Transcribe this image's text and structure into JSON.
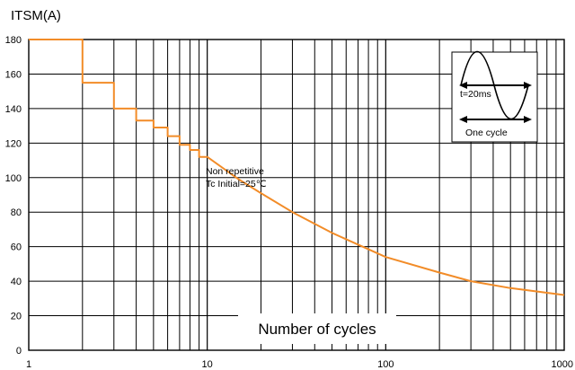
{
  "chart_data": {
    "type": "line",
    "ylabel": "ITSM(A)",
    "xlabel": "Number of cycles",
    "x_scale": "log",
    "xlim": [
      1,
      1000
    ],
    "ylim": [
      0,
      180
    ],
    "x_tick_labels": [
      "1",
      "10",
      "100",
      "1000"
    ],
    "y_tick_labels": [
      "0",
      "20",
      "40",
      "60",
      "80",
      "100",
      "120",
      "140",
      "160",
      "180"
    ],
    "grid": true,
    "line_color": "#f28c28",
    "series": [
      {
        "points": [
          [
            1,
            180
          ],
          [
            2,
            180
          ],
          [
            2,
            155
          ],
          [
            3,
            155
          ],
          [
            3,
            140
          ],
          [
            4,
            140
          ],
          [
            4,
            133
          ],
          [
            5,
            133
          ],
          [
            5,
            129
          ],
          [
            6,
            129
          ],
          [
            6,
            124
          ],
          [
            7,
            124
          ],
          [
            7,
            119
          ],
          [
            8,
            119
          ],
          [
            8,
            116
          ],
          [
            9,
            116
          ],
          [
            9,
            112
          ],
          [
            10,
            112
          ],
          [
            15,
            99
          ],
          [
            20,
            91
          ],
          [
            30,
            80
          ],
          [
            50,
            68
          ],
          [
            100,
            54
          ],
          [
            200,
            45
          ],
          [
            300,
            40
          ],
          [
            500,
            36
          ],
          [
            1000,
            32
          ]
        ]
      }
    ],
    "annotations": [
      "Non repetitive",
      "Tc Initial=25℃"
    ],
    "inset": {
      "period_label": "t=20ms",
      "cycle_label": "One cycle"
    }
  }
}
